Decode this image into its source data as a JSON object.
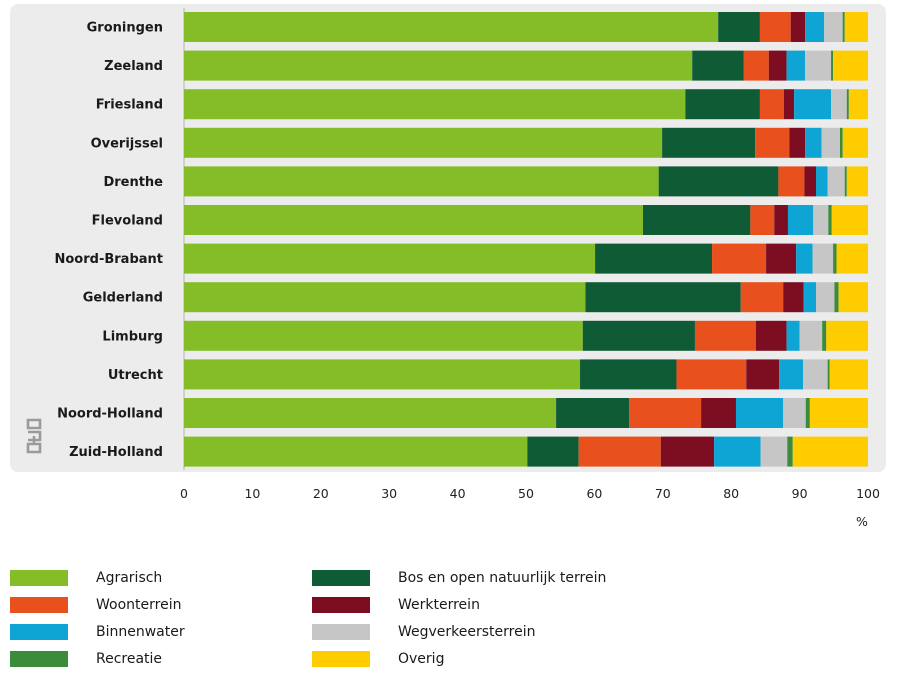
{
  "chart_data": {
    "type": "bar",
    "orientation": "horizontal",
    "stacked": true,
    "unit_label": "%",
    "xlim": [
      0,
      100
    ],
    "x_ticks": [
      "0",
      "10",
      "20",
      "30",
      "40",
      "50",
      "60",
      "70",
      "80",
      "90",
      "100"
    ],
    "categories": [
      "Groningen",
      "Zeeland",
      "Friesland",
      "Overijssel",
      "Drenthe",
      "Flevoland",
      "Noord-Brabant",
      "Gelderland",
      "Limburg",
      "Utrecht",
      "Noord-Holland",
      "Zuid-Holland"
    ],
    "series": [
      {
        "name": "Agrarisch",
        "color": "#84bd27",
        "values": [
          78.1,
          74.3,
          73.3,
          69.9,
          69.4,
          67.1,
          60.1,
          58.7,
          58.3,
          57.9,
          54.4,
          50.2
        ]
      },
      {
        "name": "Bos en open natuurlijk terrein",
        "color": "#0f5b35",
        "values": [
          6.1,
          7.5,
          10.9,
          13.6,
          17.5,
          15.7,
          17.1,
          22.7,
          16.4,
          14.1,
          10.7,
          7.5
        ]
      },
      {
        "name": "Woonterrein",
        "color": "#e8501d",
        "values": [
          4.5,
          3.7,
          3.5,
          5.0,
          3.8,
          3.5,
          7.9,
          6.2,
          8.9,
          10.2,
          10.5,
          12.0
        ]
      },
      {
        "name": "Werkterrein",
        "color": "#7d0e22",
        "values": [
          2.1,
          2.6,
          1.5,
          2.3,
          1.7,
          2.0,
          4.4,
          3.0,
          4.5,
          4.8,
          5.1,
          7.8
        ]
      },
      {
        "name": "Binnenwater",
        "color": "#0ea4d4",
        "values": [
          2.8,
          2.7,
          5.4,
          2.4,
          1.7,
          3.7,
          2.4,
          1.8,
          1.9,
          3.5,
          6.9,
          6.8
        ]
      },
      {
        "name": "Wegverkeersterrein",
        "color": "#c6c6c6",
        "values": [
          2.7,
          3.8,
          2.3,
          2.7,
          2.5,
          2.2,
          3.0,
          2.7,
          3.3,
          3.6,
          3.3,
          3.9
        ]
      },
      {
        "name": "Recreatie",
        "color": "#3b8c3a",
        "values": [
          0.3,
          0.3,
          0.3,
          0.4,
          0.3,
          0.5,
          0.5,
          0.6,
          0.6,
          0.3,
          0.6,
          0.8
        ]
      },
      {
        "name": "Overig",
        "color": "#ffcc00",
        "values": [
          3.4,
          5.1,
          2.8,
          3.7,
          3.1,
          5.3,
          4.6,
          4.3,
          6.1,
          5.6,
          8.5,
          11.0
        ]
      }
    ]
  },
  "legend": {
    "items": [
      {
        "label": "Agrarisch",
        "color": "#84bd27"
      },
      {
        "label": "Bos en open natuurlijk terrein",
        "color": "#0f5b35"
      },
      {
        "label": "Woonterrein",
        "color": "#e8501d"
      },
      {
        "label": "Werkterrein",
        "color": "#7d0e22"
      },
      {
        "label": "Binnenwater",
        "color": "#0ea4d4"
      },
      {
        "label": "Wegverkeersterrein",
        "color": "#c6c6c6"
      },
      {
        "label": "Recreatie",
        "color": "#3b8c3a"
      },
      {
        "label": "Overig",
        "color": "#ffcc00"
      }
    ]
  },
  "logo": {
    "text": "cbs"
  }
}
